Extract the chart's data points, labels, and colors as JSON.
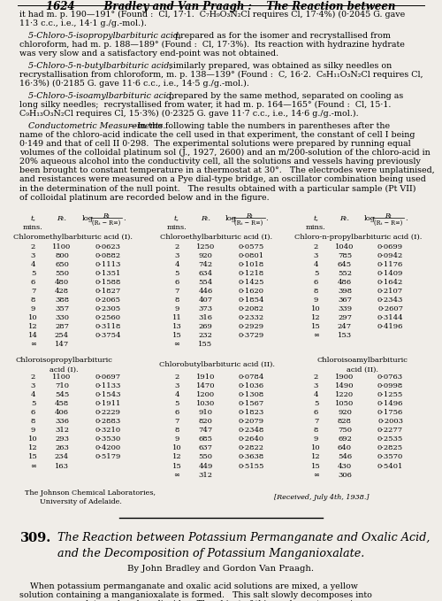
{
  "background_color": "#f0ede8",
  "page_width": 5.0,
  "page_height": 6.79,
  "dpi": 100,
  "table1": [
    [
      2,
      1100,
      "0·0623"
    ],
    [
      3,
      800,
      "0·0882"
    ],
    [
      4,
      650,
      "0·1113"
    ],
    [
      5,
      550,
      "0·1351"
    ],
    [
      6,
      480,
      "0·1588"
    ],
    [
      7,
      428,
      "0·1827"
    ],
    [
      8,
      388,
      "0·2065"
    ],
    [
      9,
      357,
      "0·2305"
    ],
    [
      10,
      330,
      "0·2560"
    ],
    [
      12,
      287,
      "0·3118"
    ],
    [
      14,
      254,
      "0·3754"
    ],
    [
      "∞",
      147,
      ""
    ]
  ],
  "table2": [
    [
      2,
      1250,
      "0·0575"
    ],
    [
      3,
      920,
      "0·0801"
    ],
    [
      4,
      742,
      "0·1018"
    ],
    [
      5,
      634,
      "0·1218"
    ],
    [
      6,
      554,
      "0·1425"
    ],
    [
      7,
      446,
      "0·1620"
    ],
    [
      8,
      407,
      "0·1854"
    ],
    [
      9,
      373,
      "0·2082"
    ],
    [
      11,
      316,
      "0·2332"
    ],
    [
      13,
      269,
      "0·2929"
    ],
    [
      15,
      232,
      "0·3729"
    ],
    [
      "∞",
      155,
      ""
    ]
  ],
  "table3": [
    [
      2,
      1040,
      "0·0699"
    ],
    [
      3,
      785,
      "0·0942"
    ],
    [
      4,
      645,
      "0·1176"
    ],
    [
      5,
      552,
      "0·1409"
    ],
    [
      6,
      486,
      "0·1642"
    ],
    [
      8,
      398,
      "0·2107"
    ],
    [
      9,
      367,
      "0·2343"
    ],
    [
      10,
      339,
      "0·2607"
    ],
    [
      12,
      297,
      "0·3144"
    ],
    [
      15,
      247,
      "0·4196"
    ],
    [
      "∞",
      153,
      ""
    ]
  ],
  "table4": [
    [
      2,
      1100,
      "0·0697"
    ],
    [
      3,
      710,
      "0·1133"
    ],
    [
      4,
      545,
      "0·1543"
    ],
    [
      5,
      458,
      "0·1911"
    ],
    [
      6,
      406,
      "0·2229"
    ],
    [
      8,
      336,
      "0·2883"
    ],
    [
      9,
      312,
      "0·3210"
    ],
    [
      10,
      293,
      "0·3530"
    ],
    [
      12,
      263,
      "0·4200"
    ],
    [
      15,
      234,
      "0·5179"
    ],
    [
      "∞",
      163,
      ""
    ]
  ],
  "table5": [
    [
      2,
      1910,
      "0·0784"
    ],
    [
      3,
      1470,
      "0·1036"
    ],
    [
      4,
      1200,
      "0·1308"
    ],
    [
      5,
      1030,
      "0·1567"
    ],
    [
      6,
      910,
      "0·1823"
    ],
    [
      7,
      820,
      "0·2079"
    ],
    [
      8,
      747,
      "0·2348"
    ],
    [
      9,
      685,
      "0·2640"
    ],
    [
      10,
      637,
      "0·2822"
    ],
    [
      12,
      550,
      "0·3638"
    ],
    [
      15,
      449,
      "0·5155"
    ],
    [
      "∞",
      312,
      ""
    ]
  ],
  "table6": [
    [
      2,
      1900,
      "0·0763"
    ],
    [
      3,
      1490,
      "0·0998"
    ],
    [
      4,
      1220,
      "0·1255"
    ],
    [
      5,
      1050,
      "0·1496"
    ],
    [
      6,
      920,
      "0·1756"
    ],
    [
      7,
      828,
      "0·2003"
    ],
    [
      8,
      750,
      "0·2277"
    ],
    [
      9,
      692,
      "0·2535"
    ],
    [
      10,
      640,
      "0·2825"
    ],
    [
      12,
      546,
      "0·3570"
    ],
    [
      15,
      430,
      "0·5401"
    ],
    [
      "∞",
      306,
      ""
    ]
  ]
}
